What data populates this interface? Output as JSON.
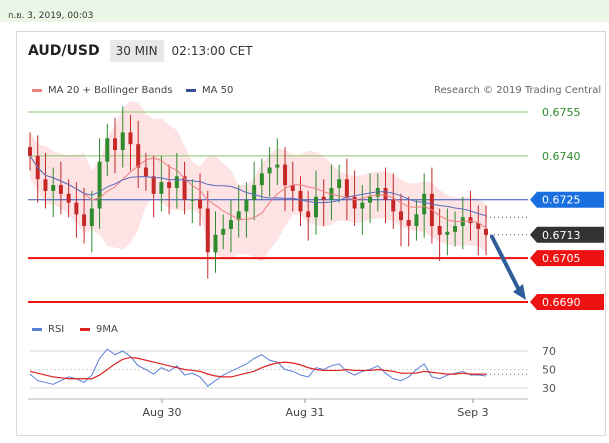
{
  "timestamp": "ก.ย. 3, 2019, 00:03",
  "header": {
    "pair": "AUD/USD",
    "timeframe": "30 MIN",
    "time": "02:13:00 CET"
  },
  "legend": {
    "ma20": "MA 20 + Bollinger Bands",
    "ma50": "MA 50",
    "credit": "Research © 2019 Trading Central"
  },
  "rsi_legend": {
    "rsi": "RSI",
    "ma9": "9MA"
  },
  "colors": {
    "bull": "#2e8b2e",
    "bear": "#c62828",
    "ma20": "#f08080",
    "ma50": "#5a6bb8",
    "band": "#fde0e0",
    "green_level": "#8dc56f",
    "blue_level": "#3355bb",
    "red_level": "#ee1111",
    "current_label": "#333333",
    "arrow": "#2f5d9a",
    "rsi": "#5a7fd6",
    "rsi_ma": "#dd2222"
  },
  "chart_data": [
    {
      "type": "candlestick",
      "title": "AUD/USD",
      "timeframe": "30 MIN",
      "x_ticks": [
        "Aug 30",
        "Aug 31",
        "Sep 3"
      ],
      "y_ticks": [
        0.6755,
        0.674,
        0.6725,
        0.6713,
        0.6705,
        0.669
      ],
      "ylim": [
        0.6685,
        0.6765
      ],
      "levels": [
        {
          "value": 0.6755,
          "label": "0.6755",
          "kind": "resistance-green"
        },
        {
          "value": 0.674,
          "label": "0.6740",
          "kind": "resistance-green"
        },
        {
          "value": 0.6725,
          "label": "0.6725",
          "kind": "pivot-blue"
        },
        {
          "value": 0.6713,
          "label": "0.6713",
          "kind": "current"
        },
        {
          "value": 0.6705,
          "label": "0.6705",
          "kind": "support-red"
        },
        {
          "value": 0.669,
          "label": "0.6690",
          "kind": "support-red"
        }
      ],
      "series": [
        {
          "name": "MA 20 + Bollinger Bands"
        },
        {
          "name": "MA 50"
        }
      ],
      "close": [
        0.674,
        0.6732,
        0.6728,
        0.673,
        0.6727,
        0.6724,
        0.672,
        0.6716,
        0.6722,
        0.6738,
        0.6746,
        0.6742,
        0.6748,
        0.6744,
        0.6736,
        0.6733,
        0.6727,
        0.6731,
        0.6729,
        0.6733,
        0.6725,
        0.6725,
        0.6722,
        0.6707,
        0.6713,
        0.6715,
        0.6718,
        0.6721,
        0.6725,
        0.673,
        0.6734,
        0.6736,
        0.6737,
        0.673,
        0.6728,
        0.6721,
        0.6719,
        0.6726,
        0.6725,
        0.6729,
        0.6732,
        0.6726,
        0.6722,
        0.6724,
        0.6726,
        0.6729,
        0.6725,
        0.6721,
        0.6718,
        0.6716,
        0.672,
        0.6727,
        0.6716,
        0.6713,
        0.6714,
        0.6716,
        0.6719,
        0.6717,
        0.6715,
        0.6713
      ],
      "forecast_arrow": {
        "from": 0.6713,
        "to": 0.669
      }
    },
    {
      "type": "line",
      "title": "RSI",
      "y_ticks": [
        70,
        50,
        30
      ],
      "ylim": [
        25,
        75
      ],
      "series": [
        {
          "name": "RSI",
          "values": [
            45,
            38,
            36,
            34,
            38,
            42,
            40,
            36,
            44,
            62,
            72,
            66,
            70,
            64,
            54,
            50,
            45,
            52,
            48,
            54,
            44,
            46,
            42,
            32,
            38,
            44,
            48,
            52,
            56,
            62,
            66,
            60,
            58,
            50,
            48,
            44,
            42,
            52,
            50,
            54,
            56,
            48,
            44,
            48,
            50,
            54,
            46,
            40,
            38,
            42,
            50,
            56,
            42,
            40,
            44,
            46,
            48,
            44,
            44,
            43
          ]
        },
        {
          "name": "9MA",
          "values": [
            48,
            46,
            44,
            42,
            41,
            40,
            40,
            40,
            40,
            44,
            50,
            56,
            61,
            63,
            62,
            60,
            58,
            56,
            54,
            52,
            50,
            49,
            48,
            45,
            43,
            42,
            42,
            44,
            46,
            48,
            52,
            55,
            57,
            58,
            57,
            55,
            52,
            50,
            49,
            49,
            49,
            50,
            49,
            49,
            49,
            50,
            49,
            48,
            46,
            46,
            46,
            48,
            47,
            46,
            45,
            45,
            46,
            45,
            45,
            45
          ]
        }
      ]
    }
  ]
}
